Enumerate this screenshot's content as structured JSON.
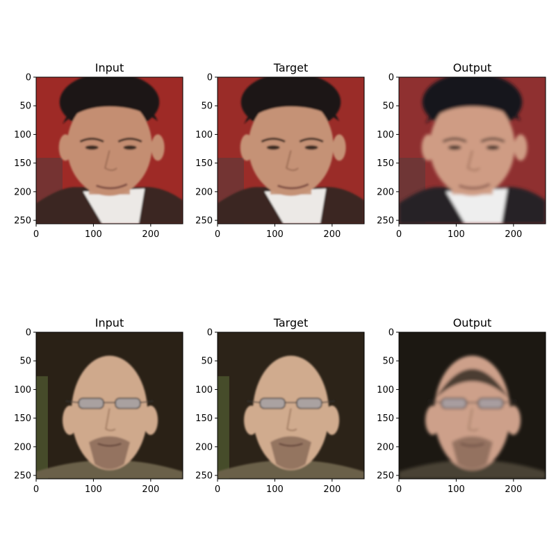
{
  "chart_data": {
    "type": "image_grid",
    "rows": 2,
    "cols": 3,
    "xlim": [
      0,
      256
    ],
    "ylim": [
      256,
      0
    ],
    "xticks": [
      0,
      100,
      200
    ],
    "yticks": [
      0,
      50,
      100,
      150,
      200,
      250
    ],
    "panels": [
      {
        "title": "Input",
        "image": "man-dark-hair-red-background",
        "palette": {
          "bg": "#9e2a26",
          "skin": "#c48e72",
          "hair": "#1a1718",
          "cloth": "#3a2722",
          "shirt": "#ece9e6"
        }
      },
      {
        "title": "Target",
        "image": "man-dark-hair-red-background",
        "palette": {
          "bg": "#9a2c28",
          "skin": "#c59276",
          "hair": "#1a1718",
          "cloth": "#3a2722",
          "shirt": "#ece9e6"
        }
      },
      {
        "title": "Output",
        "image": "man-dark-hair-red-background-generated",
        "palette": {
          "bg": "#8f3030",
          "skin": "#cf9c84",
          "hair": "#15181c",
          "cloth": "#282325",
          "shirt": "#eeeeee"
        }
      },
      {
        "title": "Input",
        "image": "bald-man-glasses-goatee",
        "palette": {
          "bg": "#2a2116",
          "skin": "#cfa98c",
          "hair": "#6a5545",
          "cloth": "#6a6148",
          "shirt": "#6a6148"
        }
      },
      {
        "title": "Target",
        "image": "bald-man-glasses-goatee",
        "palette": {
          "bg": "#2c2318",
          "skin": "#d0ab8e",
          "hair": "#6a5545",
          "cloth": "#6a6148",
          "shirt": "#6a6148"
        }
      },
      {
        "title": "Output",
        "image": "bald-man-glasses-goatee-generated",
        "palette": {
          "bg": "#1c1812",
          "skin": "#cda08a",
          "hair": "#2a231d",
          "cloth": "#4a4334",
          "shirt": "#4a4334"
        }
      }
    ]
  }
}
